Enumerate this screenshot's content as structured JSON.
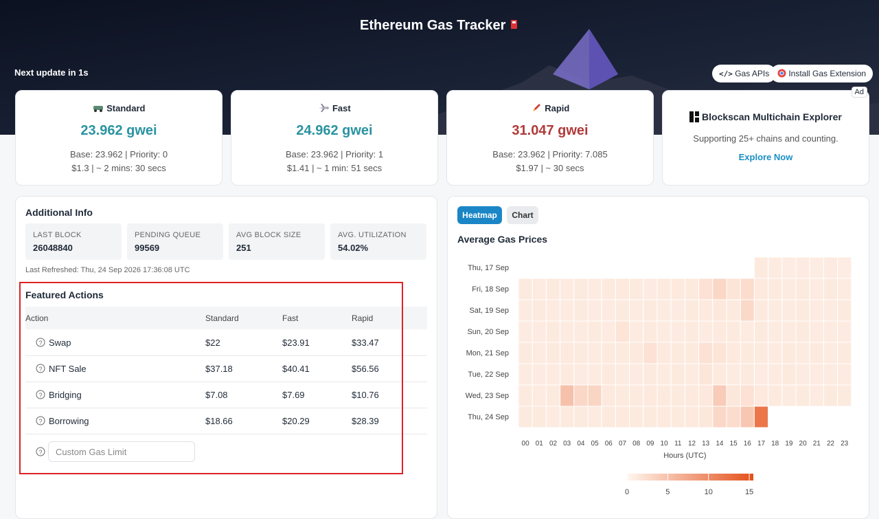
{
  "header": {
    "title": "Ethereum Gas Tracker",
    "next_update": "Next update in 1s",
    "buttons": [
      "Gas APIs",
      "Install Gas Extension"
    ],
    "ad_badge": "Ad"
  },
  "gas_cards": [
    {
      "name": "Standard",
      "price": "23.962 gwei",
      "base_priority": "Base: 23.962 | Priority: 0",
      "cost_time": "$1.3 | ~ 2 mins: 30 secs"
    },
    {
      "name": "Fast",
      "price": "24.962 gwei",
      "base_priority": "Base: 23.962 | Priority: 1",
      "cost_time": "$1.41 | ~ 1 min: 51 secs"
    },
    {
      "name": "Rapid",
      "price": "31.047 gwei",
      "base_priority": "Base: 23.962 | Priority: 7.085",
      "cost_time": "$1.97 | ~ 30 secs"
    }
  ],
  "ad": {
    "title": "Blockscan Multichain Explorer",
    "text": "Supporting 25+ chains and counting.",
    "link": "Explore Now"
  },
  "additional_info": {
    "title": "Additional Info",
    "stats": [
      {
        "label": "LAST BLOCK",
        "value": "26048840"
      },
      {
        "label": "PENDING QUEUE",
        "value": "99569"
      },
      {
        "label": "AVG BLOCK SIZE",
        "value": "251"
      },
      {
        "label": "AVG. UTILIZATION",
        "value": "54.02%"
      }
    ],
    "last_refreshed": "Last Refreshed: Thu, 24 Sep 2026 17:36:08 UTC"
  },
  "featured_actions": {
    "title": "Featured Actions",
    "columns": [
      "Action",
      "Standard",
      "Fast",
      "Rapid"
    ],
    "rows": [
      [
        "Swap",
        "$22",
        "$23.91",
        "$33.47"
      ],
      [
        "NFT Sale",
        "$37.18",
        "$40.41",
        "$56.56"
      ],
      [
        "Bridging",
        "$7.08",
        "$7.69",
        "$10.76"
      ],
      [
        "Borrowing",
        "$18.66",
        "$20.29",
        "$28.39"
      ]
    ],
    "custom_placeholder": "Custom Gas Limit"
  },
  "heatmap": {
    "tabs": [
      "Heatmap",
      "Chart"
    ],
    "title": "Average Gas Prices",
    "days": [
      "Thu, 17 Sep",
      "Fri, 18 Sep",
      "Sat, 19 Sep",
      "Sun, 20 Sep",
      "Mon, 21 Sep",
      "Tue, 22 Sep",
      "Wed, 23 Sep",
      "Thu, 24 Sep"
    ],
    "hours": [
      "00",
      "01",
      "02",
      "03",
      "04",
      "05",
      "06",
      "07",
      "08",
      "09",
      "10",
      "11",
      "12",
      "13",
      "14",
      "15",
      "16",
      "17",
      "18",
      "19",
      "20",
      "21",
      "22",
      "23"
    ],
    "x_label": "Hours (UTC)",
    "values": [
      [
        null,
        null,
        null,
        null,
        null,
        null,
        null,
        null,
        null,
        null,
        null,
        null,
        null,
        null,
        null,
        null,
        null,
        1.2,
        1.1,
        1.0,
        1.1,
        1.0,
        1.1,
        1.0
      ],
      [
        1.2,
        1.1,
        1.2,
        1.1,
        1.2,
        1.1,
        1.2,
        1.3,
        1.2,
        1.1,
        1.2,
        1.3,
        1.2,
        2.0,
        3.0,
        1.8,
        2.5,
        1.3,
        1.2,
        1.1,
        1.2,
        1.1,
        1.2,
        1.1
      ],
      [
        1.1,
        1.2,
        1.1,
        1.1,
        1.2,
        1.1,
        1.1,
        1.2,
        1.1,
        1.2,
        1.1,
        1.1,
        1.2,
        1.3,
        1.4,
        1.2,
        2.8,
        1.2,
        1.1,
        1.1,
        1.2,
        1.1,
        1.1,
        1.2
      ],
      [
        1.1,
        1.1,
        1.2,
        1.1,
        1.1,
        1.2,
        1.1,
        1.8,
        1.1,
        1.2,
        1.1,
        1.1,
        1.2,
        1.1,
        1.3,
        1.2,
        1.1,
        1.2,
        1.1,
        1.1,
        1.2,
        1.1,
        1.1,
        1.1
      ],
      [
        1.2,
        1.1,
        1.2,
        1.3,
        1.2,
        1.1,
        1.2,
        1.2,
        1.3,
        2.0,
        1.3,
        1.2,
        1.2,
        2.0,
        1.8,
        1.3,
        1.2,
        1.2,
        1.1,
        1.2,
        1.1,
        1.2,
        1.1,
        1.2
      ],
      [
        1.1,
        1.1,
        1.1,
        1.2,
        1.1,
        1.1,
        1.2,
        1.1,
        1.1,
        1.2,
        1.1,
        1.2,
        1.1,
        1.6,
        1.2,
        1.1,
        1.2,
        1.1,
        1.1,
        1.2,
        1.1,
        1.1,
        1.1,
        1.1
      ],
      [
        1.2,
        1.1,
        1.2,
        5.0,
        3.0,
        3.2,
        1.3,
        1.2,
        1.2,
        1.3,
        1.2,
        1.2,
        1.3,
        1.4,
        4.0,
        1.5,
        2.0,
        1.3,
        1.2,
        1.1,
        1.2,
        1.1,
        1.2,
        1.2
      ],
      [
        1.2,
        1.2,
        1.1,
        1.2,
        1.2,
        1.1,
        1.2,
        1.3,
        1.2,
        1.2,
        1.3,
        1.2,
        1.3,
        1.5,
        3.0,
        2.5,
        4.5,
        12.0,
        null,
        null,
        null,
        null,
        null,
        null
      ]
    ],
    "colorbar_lim": [
      0,
      15.5
    ],
    "colorbar_ticks": [
      0,
      5,
      10,
      15
    ]
  }
}
